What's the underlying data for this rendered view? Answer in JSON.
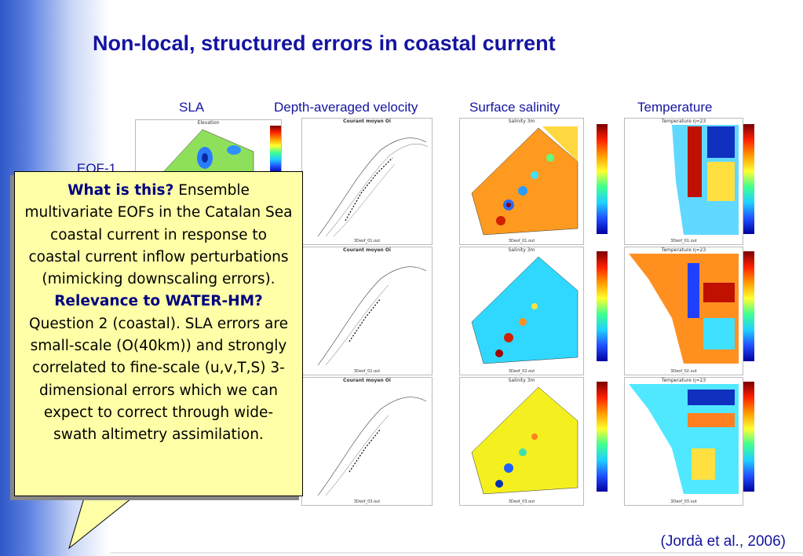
{
  "slide": {
    "title": "Non-local, structured errors in coastal current",
    "columns": [
      "SLA",
      "Depth-averaged velocity",
      "Surface salinity",
      "Temperature"
    ],
    "eof_label": "EOF-1",
    "citation": "(Jordà et al., 2006)"
  },
  "panels": {
    "sla_title": "Elevation",
    "velocity_title": "Courant moyen Oi",
    "salinity_title": "Salinity  3m",
    "temperature_title": "Temperature η=23",
    "footer_1": "3Deof_01.out",
    "footer_2": "3Deof_02.out",
    "footer_3": "3Deof_03.out"
  },
  "callout": {
    "heading1": "What is this?",
    "text1": " Ensemble multivariate EOFs in the Catalan Sea coastal current in response to coastal current inflow perturbations (mimicking downscaling errors).",
    "heading2": "Relevance to WATER-HM?",
    "text2": "Question 2 (coastal).  SLA errors are small-scale (O(40km)) and strongly correlated to fine-scale (u,v,T,S) 3-dimensional errors which we can expect to correct through wide-swath altimetry assimilation."
  },
  "colors": {
    "title_blue": "#1414a0",
    "callout_bg": "#ffffa8"
  }
}
